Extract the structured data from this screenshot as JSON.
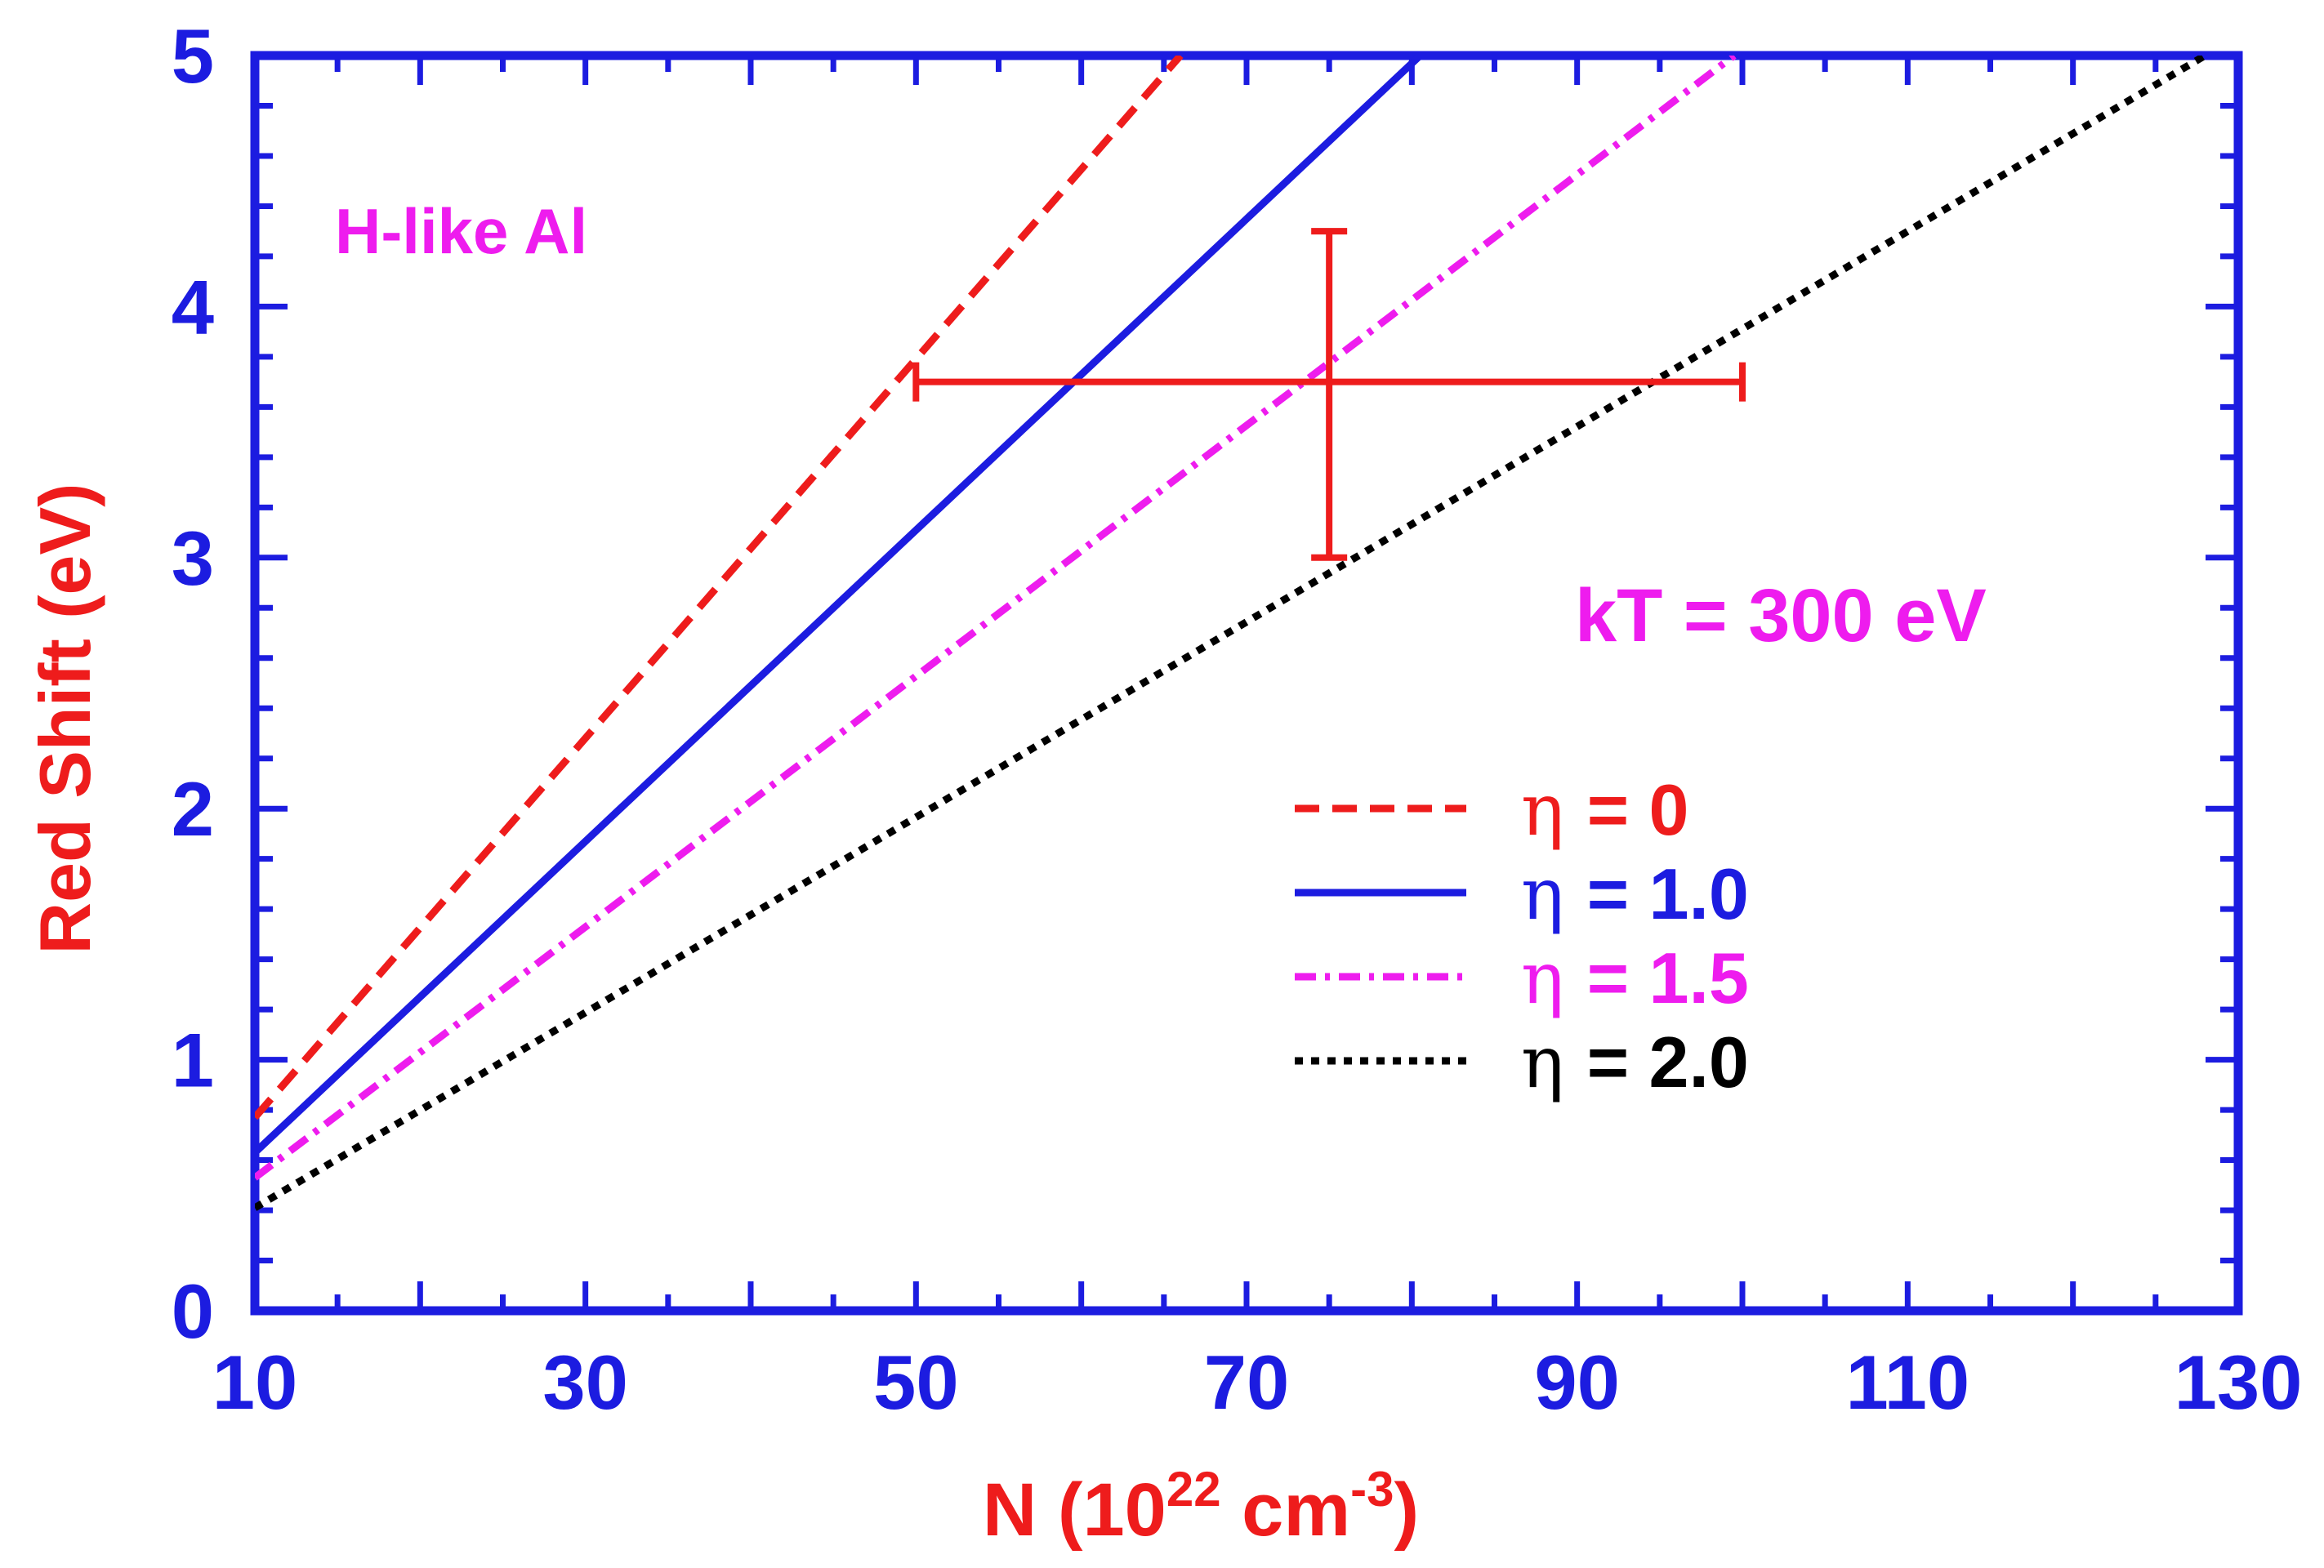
{
  "chart_data": {
    "type": "line",
    "xlabel": "N (10",
    "xlabel_exp": "22",
    "xlabel_unit": " cm",
    "xlabel_unit_exp": "-3",
    "xlabel_close": ")",
    "ylabel": "Red Shift (eV)",
    "xlim": [
      10,
      130
    ],
    "ylim": [
      0,
      5
    ],
    "x_ticks": [
      "10",
      "30",
      "50",
      "70",
      "90",
      "110",
      "130"
    ],
    "y_ticks": [
      "0",
      "1",
      "2",
      "3",
      "4",
      "5"
    ],
    "annotations": {
      "species": "H-like Al",
      "temperature": "kT = 300 eV"
    },
    "series": [
      {
        "name": "η = 0",
        "symbol": "η",
        "value_text": "= 0",
        "x": [
          10,
          66
        ],
        "y": [
          0.77,
          5.0
        ],
        "color": "#ee1c1c",
        "style": "dashed"
      },
      {
        "name": "η = 1.0",
        "symbol": "η",
        "value_text": "= 1.0",
        "x": [
          10,
          80.5
        ],
        "y": [
          0.63,
          5.0
        ],
        "color": "#1c1ce0",
        "style": "solid"
      },
      {
        "name": "η = 1.5",
        "symbol": "η",
        "value_text": "= 1.5",
        "x": [
          10,
          99.5
        ],
        "y": [
          0.53,
          5.0
        ],
        "color": "#ee1cee",
        "style": "dashdot"
      },
      {
        "name": "η = 2.0",
        "symbol": "η",
        "value_text": "= 2.0",
        "x": [
          10,
          128
        ],
        "y": [
          0.41,
          5.0
        ],
        "color": "#000000",
        "style": "dotted"
      }
    ],
    "data_point": {
      "x": 75,
      "y": 3.7,
      "x_err": [
        50,
        100
      ],
      "y_err": [
        3.0,
        4.3
      ],
      "color": "#ee1c1c"
    },
    "colors": {
      "axis": "#1c1ce0",
      "tick_labels": "#1c1ce0",
      "axis_title": "#ee1c1c",
      "annotation": "#ee1cee"
    }
  }
}
